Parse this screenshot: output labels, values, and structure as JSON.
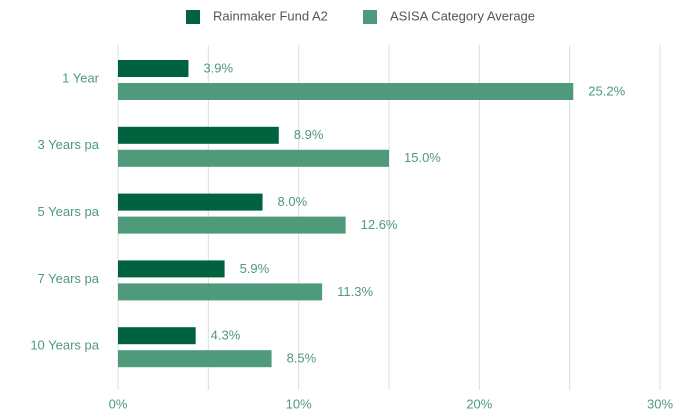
{
  "chart_data": {
    "type": "barh",
    "categories": [
      "1 Year",
      "3 Years pa",
      "5 Years pa",
      "7 Years pa",
      "10 Years pa"
    ],
    "series": [
      {
        "name": "Rainmaker Fund A2",
        "color": "#00623f",
        "values": [
          3.9,
          8.9,
          8.0,
          5.9,
          4.3
        ],
        "value_labels": [
          "3.9%",
          "8.9%",
          "8.0%",
          "5.9%",
          "4.3%"
        ]
      },
      {
        "name": "ASISA Category Average",
        "color": "#4e9a7a",
        "values": [
          25.2,
          15.0,
          12.6,
          11.3,
          8.5
        ],
        "value_labels": [
          "25.2%",
          "15.0%",
          "12.6%",
          "11.3%",
          "8.5%"
        ]
      }
    ],
    "xlim": [
      0,
      30
    ],
    "xticks": [
      {
        "value": 0,
        "label": "0%"
      },
      {
        "value": 10,
        "label": "10%"
      },
      {
        "value": 20,
        "label": "20%"
      },
      {
        "value": 30,
        "label": "30%"
      }
    ],
    "minor_xticks": [
      5,
      15,
      25
    ],
    "grid": true,
    "legend": "top"
  }
}
